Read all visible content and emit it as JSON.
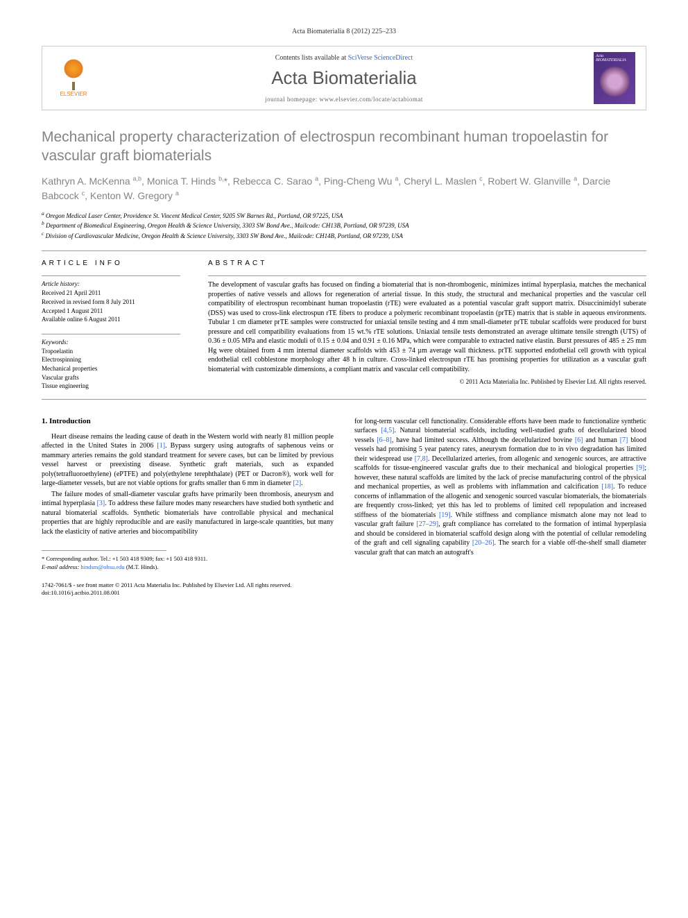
{
  "header": {
    "citation": "Acta Biomaterialia 8 (2012) 225–233",
    "contents_prefix": "Contents lists available at ",
    "contents_link": "SciVerse ScienceDirect",
    "journal_name": "Acta Biomaterialia",
    "homepage": "journal homepage: www.elsevier.com/locate/actabiomat",
    "publisher": "ELSEVIER",
    "cover_label": "Acta BIOMATERIALIA"
  },
  "article": {
    "title": "Mechanical property characterization of electrospun recombinant human tropoelastin for vascular graft biomaterials",
    "authors_html": "Kathryn A. McKenna <sup>a,b</sup>, Monica T. Hinds <sup>b,</sup>*, Rebecca C. Sarao <sup>a</sup>, Ping-Cheng Wu <sup>a</sup>, Cheryl L. Maslen <sup>c</sup>, Robert W. Glanville <sup>a</sup>, Darcie Babcock <sup>c</sup>, Kenton W. Gregory <sup>a</sup>",
    "affiliations": [
      "a Oregon Medical Laser Center, Providence St. Vincent Medical Center, 9205 SW Barnes Rd., Portland, OR 97225, USA",
      "b Department of Biomedical Engineering, Oregon Health & Science University, 3303 SW Bond Ave., Mailcode: CH13B, Portland, OR 97239, USA",
      "c Division of Cardiovascular Medicine, Oregon Health & Science University, 3303 SW Bond Ave., Mailcode: CH14B, Portland, OR 97239, USA"
    ]
  },
  "info": {
    "label": "ARTICLE INFO",
    "history_label": "Article history:",
    "history": [
      "Received 21 April 2011",
      "Received in revised form 8 July 2011",
      "Accepted 1 August 2011",
      "Available online 6 August 2011"
    ],
    "keywords_label": "Keywords:",
    "keywords": [
      "Tropoelastin",
      "Electrospinning",
      "Mechanical properties",
      "Vascular grafts",
      "Tissue engineering"
    ]
  },
  "abstract": {
    "label": "ABSTRACT",
    "text": "The development of vascular grafts has focused on finding a biomaterial that is non-thrombogenic, minimizes intimal hyperplasia, matches the mechanical properties of native vessels and allows for regeneration of arterial tissue. In this study, the structural and mechanical properties and the vascular cell compatibility of electrospun recombinant human tropoelastin (rTE) were evaluated as a potential vascular graft support matrix. Disuccinimidyl suberate (DSS) was used to cross-link electrospun rTE fibers to produce a polymeric recombinant tropoelastin (prTE) matrix that is stable in aqueous environments. Tubular 1 cm diameter prTE samples were constructed for uniaxial tensile testing and 4 mm small-diameter prTE tubular scaffolds were produced for burst pressure and cell compatibility evaluations from 15 wt.% rTE solutions. Uniaxial tensile tests demonstrated an average ultimate tensile strength (UTS) of 0.36 ± 0.05 MPa and elastic moduli of 0.15 ± 0.04 and 0.91 ± 0.16 MPa, which were comparable to extracted native elastin. Burst pressures of 485 ± 25 mm Hg were obtained from 4 mm internal diameter scaffolds with 453 ± 74 µm average wall thickness. prTE supported endothelial cell growth with typical endothelial cell cobblestone morphology after 48 h in culture. Cross-linked electrospun rTE has promising properties for utilization as a vascular graft biomaterial with customizable dimensions, a compliant matrix and vascular cell compatibility.",
    "copyright": "© 2011 Acta Materialia Inc. Published by Elsevier Ltd. All rights reserved."
  },
  "intro": {
    "heading": "1. Introduction",
    "col1_p1": "Heart disease remains the leading cause of death in the Western world with nearly 81 million people affected in the United States in 2006 [1]. Bypass surgery using autografts of saphenous veins or mammary arteries remains the gold standard treatment for severe cases, but can be limited by previous vessel harvest or preexisting disease. Synthetic graft materials, such as expanded poly(tetrafluoroethylene) (ePTFE) and poly(ethylene terephthalate) (PET or Dacron®), work well for large-diameter vessels, but are not viable options for grafts smaller than 6 mm in diameter [2].",
    "col1_p2": "The failure modes of small-diameter vascular grafts have primarily been thrombosis, aneurysm and intimal hyperplasia [3]. To address these failure modes many researchers have studied both synthetic and natural biomaterial scaffolds. Synthetic biomaterials have controllable physical and mechanical properties that are highly reproducible and are easily manufactured in large-scale quantities, but many lack the elasticity of native arteries and biocompatibility",
    "col2_p1": "for long-term vascular cell functionality. Considerable efforts have been made to functionalize synthetic surfaces [4,5]. Natural biomaterial scaffolds, including well-studied grafts of decellularized blood vessels [6–8], have had limited success. Although the decellularized bovine [6] and human [7] blood vessels had promising 5 year patency rates, aneurysm formation due to in vivo degradation has limited their widespread use [7,8]. Decellularized arteries, from allogenic and xenogenic sources, are attractive scaffolds for tissue-engineered vascular grafts due to their mechanical and biological properties [9]; however, these natural scaffolds are limited by the lack of precise manufacturing control of the physical and mechanical properties, as well as problems with inflammation and calcification [18]. To reduce concerns of inflammation of the allogenic and xenogenic sourced vascular biomaterials, the biomaterials are frequently cross-linked; yet this has led to problems of limited cell repopulation and increased stiffness of the biomaterials [19]. While stiffness and compliance mismatch alone may not lead to vascular graft failure [27–29], graft compliance has correlated to the formation of intimal hyperplasia and should be considered in biomaterial scaffold design along with the potential of cellular remodeling of the graft and cell signaling capability [20–26]. The search for a viable off-the-shelf small diameter vascular graft that can match an autograft's"
  },
  "footer": {
    "corresponding": "* Corresponding author. Tel.: +1 503 418 9309; fax: +1 503 418 9311.",
    "email_label": "E-mail address: ",
    "email": "hindsm@ohsu.edu",
    "email_suffix": " (M.T. Hinds).",
    "issn_line": "1742-7061/$ - see front matter © 2011 Acta Materialia Inc. Published by Elsevier Ltd. All rights reserved.",
    "doi": "doi:10.1016/j.actbio.2011.08.001"
  },
  "refs": {
    "r1": "[1]",
    "r2": "[2]",
    "r3": "[3]",
    "r45": "[4,5]",
    "r68": "[6–8]",
    "r6": "[6]",
    "r7": "[7]",
    "r78": "[7,8]",
    "r9": "[9]",
    "r18": "[18]",
    "r19": "[19]",
    "r2729": "[27–29]",
    "r2026": "[20–26]"
  },
  "colors": {
    "link": "#3366cc",
    "title_gray": "#848484",
    "elsevier_orange": "#e67e22"
  }
}
